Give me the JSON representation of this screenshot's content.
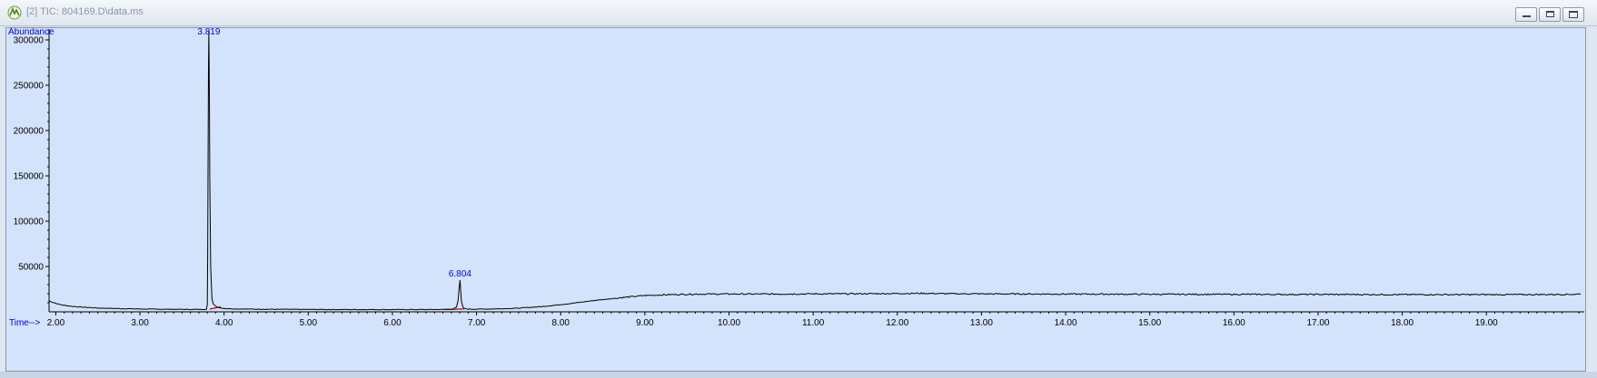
{
  "window": {
    "title": "[2] TIC: 804169.D\\data.ms",
    "buttons": {
      "minimize": "minimize",
      "restore": "restore",
      "close": "close"
    }
  },
  "colors": {
    "plot_background": "#d3e3fb",
    "trace": "#000000",
    "baseline_marks": "#cc0000",
    "labels": "#0000cc"
  },
  "chart_data": {
    "type": "line",
    "title": "",
    "xlabel": "Time-->",
    "ylabel": "Abundance",
    "xlim": [
      1.92,
      20.12
    ],
    "ylim": [
      0,
      310000
    ],
    "x_ticks": [
      2.0,
      3.0,
      4.0,
      5.0,
      6.0,
      7.0,
      8.0,
      9.0,
      10.0,
      11.0,
      12.0,
      13.0,
      14.0,
      15.0,
      16.0,
      17.0,
      18.0,
      19.0
    ],
    "x_tick_labels": [
      "2.00",
      "3.00",
      "4.00",
      "5.00",
      "6.00",
      "7.00",
      "8.00",
      "9.00",
      "10.00",
      "11.00",
      "12.00",
      "13.00",
      "14.00",
      "15.00",
      "16.00",
      "17.00",
      "18.00",
      "19.00"
    ],
    "y_ticks": [
      50000,
      100000,
      150000,
      200000,
      250000,
      300000
    ],
    "y_tick_labels": [
      "50000",
      "100000",
      "150000",
      "200000",
      "250000",
      "300000"
    ],
    "grid": false,
    "legend": "none",
    "peak_labels": [
      {
        "label": "3.819",
        "x": 3.819,
        "y": 310000
      },
      {
        "label": "6.804",
        "x": 6.804,
        "y": 35000
      }
    ],
    "series": [
      {
        "x": [
          1.92,
          1.98,
          2.05,
          2.15,
          2.3,
          2.5,
          2.8,
          3.1,
          3.4,
          3.6,
          3.75,
          3.79,
          3.8,
          3.805,
          3.81,
          3.815,
          3.819,
          3.825,
          3.83,
          3.84,
          3.855,
          3.87,
          3.9,
          3.95,
          4.0,
          4.1,
          4.3,
          4.6,
          5.0,
          5.5,
          6.0,
          6.4,
          6.6,
          6.72,
          6.76,
          6.78,
          6.79,
          6.8,
          6.804,
          6.81,
          6.82,
          6.835,
          6.85,
          6.9,
          7.0,
          7.2,
          7.5,
          7.8,
          8.1,
          8.4,
          8.7,
          9.0,
          9.3,
          9.6,
          10.0,
          10.5,
          11.0,
          11.5,
          12.0,
          12.3,
          12.6,
          13.0,
          13.5,
          14.0,
          14.5,
          15.0,
          15.5,
          16.0,
          16.5,
          17.0,
          17.5,
          18.0,
          18.5,
          19.0,
          19.5,
          20.0,
          20.12
        ],
        "y": [
          12000,
          10000,
          8000,
          6500,
          5200,
          4200,
          3500,
          3000,
          2800,
          2700,
          2700,
          3000,
          8000,
          60000,
          180000,
          270000,
          310000,
          240000,
          150000,
          50000,
          15000,
          9000,
          6000,
          4500,
          3800,
          3300,
          3000,
          2800,
          2600,
          2500,
          2500,
          2500,
          2600,
          3000,
          5000,
          12000,
          22000,
          32000,
          35000,
          25000,
          12000,
          6000,
          3800,
          3000,
          3000,
          3200,
          4000,
          6000,
          9000,
          12500,
          15500,
          18000,
          19000,
          19500,
          19700,
          19600,
          19800,
          19900,
          20200,
          20400,
          20000,
          19800,
          19700,
          19600,
          19500,
          19400,
          19300,
          19300,
          19200,
          19200,
          19100,
          19000,
          19000,
          19000,
          19000,
          19300,
          19500
        ]
      }
    ],
    "baseline_segments": [
      {
        "x": [
          3.83,
          3.96
        ],
        "y": [
          3000,
          5500
        ]
      },
      {
        "x": [
          6.62,
          6.85
        ],
        "y": [
          2500,
          3200
        ]
      }
    ]
  }
}
